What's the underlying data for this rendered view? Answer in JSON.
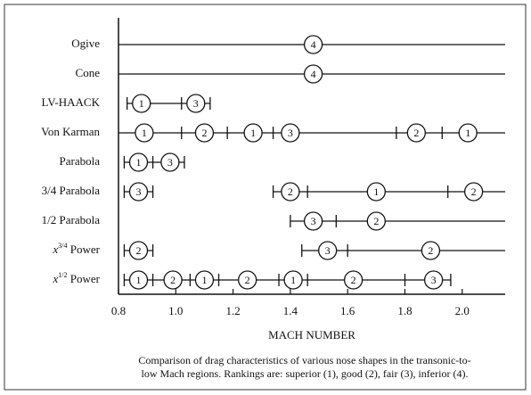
{
  "chart_data": {
    "type": "range",
    "xlabel": "MACH NUMBER",
    "caption": [
      "Comparison of drag characteristics of various nose shapes in the transonic-to-",
      "low Mach regions.  Rankings are: superior (1), good (2), fair (3), inferior (4)."
    ],
    "xlim": [
      0.8,
      2.15
    ],
    "xticks": [
      0.8,
      {
        "value": 1.0,
        "label": "1.0"
      },
      1.2,
      1.4,
      1.6,
      1.8,
      {
        "value": 2.0,
        "label": "2.0"
      }
    ],
    "rows": [
      {
        "name": "Ogive",
        "segments": [
          [
            0.8,
            2.15
          ]
        ],
        "dividers": [],
        "ratings": [
          {
            "x": 1.48,
            "rank": 4
          }
        ]
      },
      {
        "name": "Cone",
        "segments": [
          [
            0.8,
            2.15
          ]
        ],
        "dividers": [],
        "ratings": [
          {
            "x": 1.48,
            "rank": 4
          }
        ]
      },
      {
        "name": "LV-HAACK",
        "segments": [
          [
            0.83,
            1.12
          ]
        ],
        "dividers": [
          1.02
        ],
        "ratings": [
          {
            "x": 0.88,
            "rank": 1
          },
          {
            "x": 1.07,
            "rank": 3
          }
        ]
      },
      {
        "name": "Von Karman",
        "segments": [
          [
            0.8,
            2.15
          ]
        ],
        "dividers": [
          1.02,
          1.18,
          1.34,
          1.77,
          1.93
        ],
        "ratings": [
          {
            "x": 0.89,
            "rank": 1
          },
          {
            "x": 1.1,
            "rank": 2
          },
          {
            "x": 1.27,
            "rank": 1
          },
          {
            "x": 1.4,
            "rank": 3
          },
          {
            "x": 1.84,
            "rank": 2
          },
          {
            "x": 2.02,
            "rank": 1
          }
        ]
      },
      {
        "name": "Parabola",
        "segments": [
          [
            0.82,
            1.03
          ]
        ],
        "dividers": [
          0.92
        ],
        "ratings": [
          {
            "x": 0.87,
            "rank": 1
          },
          {
            "x": 0.98,
            "rank": 3
          }
        ]
      },
      {
        "name": "3/4 Parabola",
        "segments": [
          [
            0.82,
            0.92
          ],
          [
            1.34,
            2.15
          ]
        ],
        "dividers": [
          1.46,
          1.95
        ],
        "ratings": [
          {
            "x": 0.87,
            "rank": 3
          },
          {
            "x": 1.4,
            "rank": 2
          },
          {
            "x": 1.7,
            "rank": 1
          },
          {
            "x": 2.04,
            "rank": 2
          }
        ]
      },
      {
        "name": "1/2 Parabola",
        "segments": [
          [
            1.4,
            2.15
          ]
        ],
        "dividers": [
          1.56
        ],
        "ratings": [
          {
            "x": 1.48,
            "rank": 3
          },
          {
            "x": 1.7,
            "rank": 2
          }
        ]
      },
      {
        "name": {
          "base": "x",
          "exp": "3/4",
          "rest": " Power"
        },
        "segments": [
          [
            0.82,
            0.92
          ],
          [
            1.44,
            2.15
          ]
        ],
        "dividers": [
          1.6
        ],
        "ratings": [
          {
            "x": 0.87,
            "rank": 2
          },
          {
            "x": 1.53,
            "rank": 3
          },
          {
            "x": 1.89,
            "rank": 2
          }
        ]
      },
      {
        "name": {
          "base": "x",
          "exp": "1/2",
          "rest": " Power"
        },
        "segments": [
          [
            0.82,
            1.96
          ]
        ],
        "dividers": [
          0.92,
          1.05,
          1.15,
          1.36,
          1.46,
          1.8
        ],
        "ratings": [
          {
            "x": 0.87,
            "rank": 1
          },
          {
            "x": 0.99,
            "rank": 2
          },
          {
            "x": 1.1,
            "rank": 1
          },
          {
            "x": 1.25,
            "rank": 2
          },
          {
            "x": 1.41,
            "rank": 1
          },
          {
            "x": 1.62,
            "rank": 2
          },
          {
            "x": 1.9,
            "rank": 3
          }
        ]
      }
    ]
  }
}
